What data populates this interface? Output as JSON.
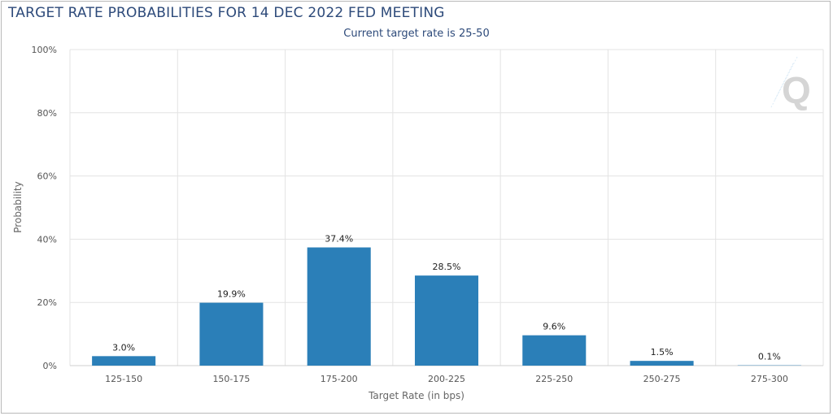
{
  "chart_data": {
    "type": "bar",
    "title": "TARGET RATE PROBABILITIES FOR 14 DEC 2022 FED MEETING",
    "subtitle": "Current target rate is 25-50",
    "xlabel": "Target Rate (in bps)",
    "ylabel": "Probability",
    "categories": [
      "125-150",
      "150-175",
      "175-200",
      "200-225",
      "225-250",
      "250-275",
      "275-300"
    ],
    "values": [
      3.0,
      19.9,
      37.4,
      28.5,
      9.6,
      1.5,
      0.1
    ],
    "data_labels": [
      "3.0%",
      "19.9%",
      "37.4%",
      "28.5%",
      "9.6%",
      "1.5%",
      "0.1%"
    ],
    "ylim": [
      0,
      100
    ],
    "yticks": [
      0,
      20,
      40,
      60,
      80,
      100
    ],
    "ytick_labels": [
      "0%",
      "20%",
      "40%",
      "60%",
      "80%",
      "100%"
    ],
    "grid": true,
    "bar_color": "#2b7fb8",
    "logo": "Q"
  }
}
